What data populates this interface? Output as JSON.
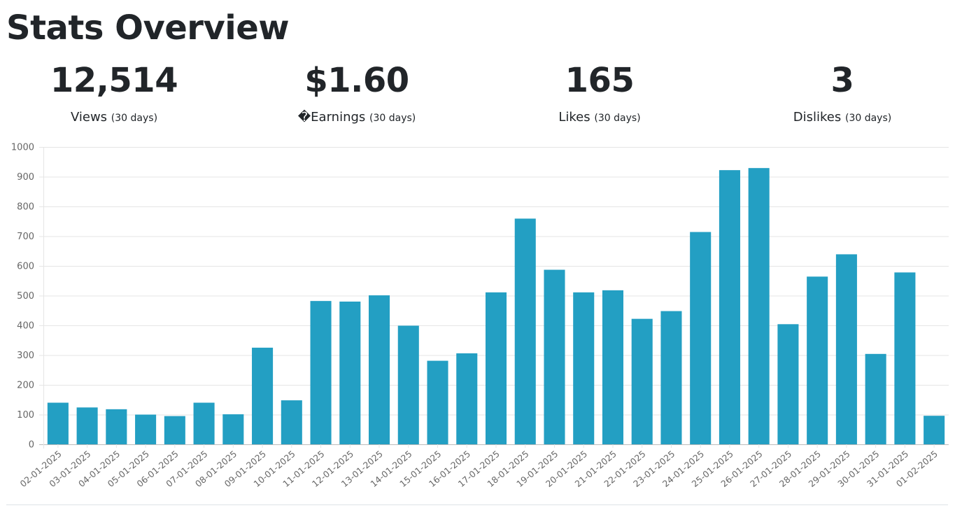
{
  "page": {
    "title": "Stats Overview"
  },
  "stats": [
    {
      "value": "12,514",
      "label": "Views",
      "period": "(30 days)"
    },
    {
      "value": "$1.60",
      "label": "�Earnings",
      "period": "(30 days)"
    },
    {
      "value": "165",
      "label": "Likes",
      "period": "(30 days)"
    },
    {
      "value": "3",
      "label": "Dislikes",
      "period": "(30 days)"
    }
  ],
  "chart_data": {
    "type": "bar",
    "title": "",
    "xlabel": "",
    "ylabel": "",
    "ylim": [
      0,
      1000
    ],
    "y_ticks": [
      0,
      100,
      200,
      300,
      400,
      500,
      600,
      700,
      800,
      900,
      1000
    ],
    "grid": true,
    "legend": "none",
    "bar_color": "#239fc3",
    "categories": [
      "02-01-2025",
      "03-01-2025",
      "04-01-2025",
      "05-01-2025",
      "06-01-2025",
      "07-01-2025",
      "08-01-2025",
      "09-01-2025",
      "10-01-2025",
      "11-01-2025",
      "12-01-2025",
      "13-01-2025",
      "14-01-2025",
      "15-01-2025",
      "16-01-2025",
      "17-01-2025",
      "18-01-2025",
      "19-01-2025",
      "20-01-2025",
      "21-01-2025",
      "22-01-2025",
      "23-01-2025",
      "24-01-2025",
      "25-01-2025",
      "26-01-2025",
      "27-01-2025",
      "28-01-2025",
      "29-01-2025",
      "30-01-2025",
      "31-01-2025",
      "01-02-2025"
    ],
    "values": [
      140,
      124,
      118,
      100,
      95,
      140,
      101,
      325,
      148,
      482,
      480,
      501,
      399,
      281,
      306,
      511,
      759,
      587,
      511,
      518,
      422,
      448,
      714,
      922,
      929,
      404,
      564,
      639,
      304,
      578,
      96
    ]
  }
}
